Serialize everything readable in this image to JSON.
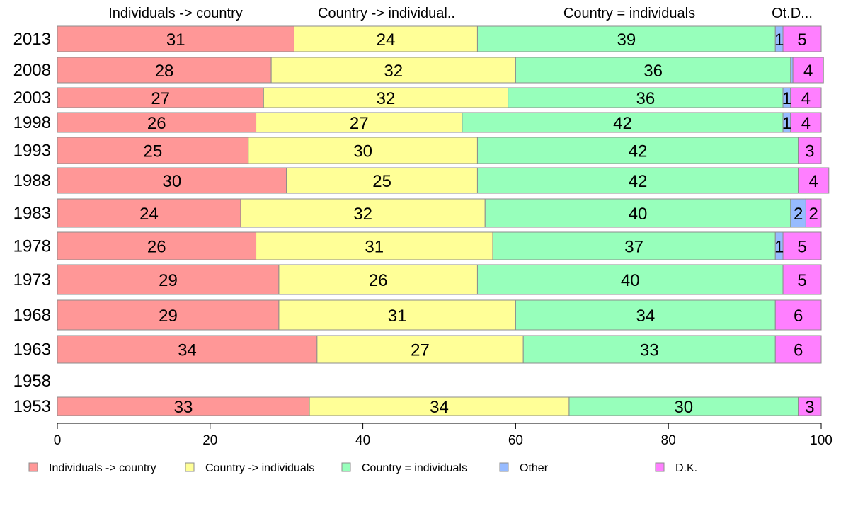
{
  "chart_data": {
    "type": "bar",
    "orientation": "horizontal",
    "stacked": true,
    "column_headers": [
      "Individuals -> country",
      "Country -> individual..",
      "Country = individuals",
      "Ot.D..."
    ],
    "categories": [
      "2013",
      "2008",
      "2003",
      "1998",
      "1993",
      "1988",
      "1983",
      "1978",
      "1973",
      "1968",
      "1963",
      "1958",
      "1953"
    ],
    "series": [
      {
        "name": "Individuals -> country",
        "color": "#ff9797",
        "values": [
          31,
          28,
          27,
          26,
          25,
          30,
          24,
          26,
          29,
          29,
          34,
          null,
          33
        ]
      },
      {
        "name": "Country -> individuals",
        "color": "#ffff97",
        "values": [
          24,
          32,
          32,
          27,
          30,
          25,
          32,
          31,
          26,
          31,
          27,
          null,
          34
        ]
      },
      {
        "name": "Country = individuals",
        "color": "#97ffbb",
        "values": [
          39,
          36,
          36,
          42,
          42,
          42,
          40,
          37,
          40,
          34,
          33,
          null,
          30
        ]
      },
      {
        "name": "Other",
        "color": "#97bbff",
        "values": [
          1,
          0.3,
          1,
          1,
          0,
          0,
          2,
          1,
          0,
          0,
          0,
          null,
          0
        ]
      },
      {
        "name": "D.K.",
        "color": "#ff7fff",
        "values": [
          5,
          4,
          4,
          4,
          3,
          4,
          2,
          5,
          5,
          6,
          6,
          null,
          3
        ]
      }
    ],
    "data_labels": [
      [
        "31",
        "24",
        "39",
        "1",
        "5"
      ],
      [
        "28",
        "32",
        "36",
        "",
        "4"
      ],
      [
        "27",
        "32",
        "36",
        "1",
        "4"
      ],
      [
        "26",
        "27",
        "42",
        "1",
        "4"
      ],
      [
        "25",
        "30",
        "42",
        "",
        "3"
      ],
      [
        "30",
        "25",
        "42",
        "",
        "4"
      ],
      [
        "24",
        "32",
        "40",
        "2",
        "2"
      ],
      [
        "26",
        "31",
        "37",
        "1",
        "5"
      ],
      [
        "29",
        "26",
        "40",
        "",
        "5"
      ],
      [
        "29",
        "31",
        "34",
        "",
        "6"
      ],
      [
        "34",
        "27",
        "33",
        "",
        "6"
      ],
      [
        "",
        "",
        "",
        "",
        ""
      ],
      [
        "33",
        "34",
        "30",
        "",
        "3"
      ]
    ],
    "xlim": [
      0,
      100
    ],
    "xticks": [
      "0",
      "20",
      "40",
      "60",
      "80",
      "100"
    ],
    "grid": false,
    "legend_position": "bottom"
  }
}
